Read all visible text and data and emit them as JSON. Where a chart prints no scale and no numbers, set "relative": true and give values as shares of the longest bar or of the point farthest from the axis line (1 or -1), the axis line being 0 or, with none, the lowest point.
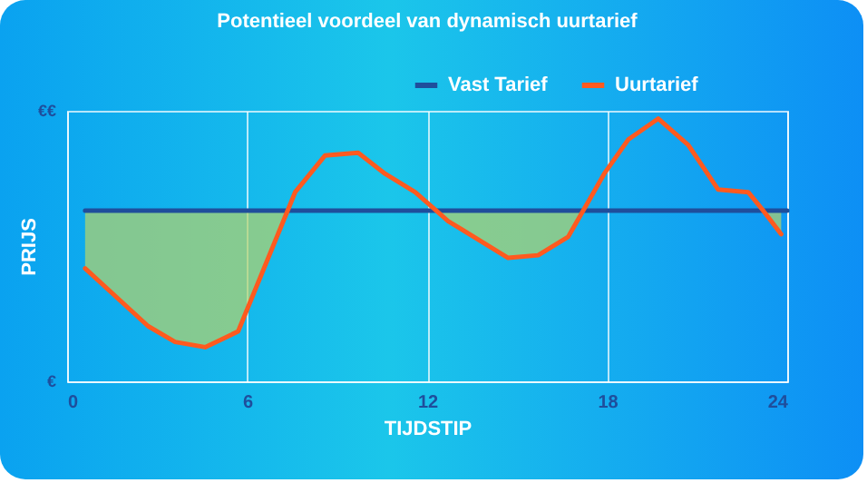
{
  "chart_data": {
    "type": "line",
    "title": "Potentieel voordeel van dynamisch uurtarief",
    "xlabel": "TIJDSTIP",
    "ylabel": "PRIJS",
    "xlim": [
      0,
      24
    ],
    "xticks": [
      0,
      6,
      12,
      18,
      24
    ],
    "relative": true,
    "annotations": [
      "€€",
      "€"
    ],
    "grid": "x",
    "legend": "top right",
    "marker": "none",
    "line_style": "solid",
    "series": [
      {
        "name": "Vast Tarief",
        "color": "#1f4e9c",
        "x": [
          0.6,
          24
        ],
        "values": [
          0.65,
          0.65
        ]
      },
      {
        "name": "Uurtarief",
        "color": "#ff5a1f",
        "x": [
          0.6,
          2.7,
          3.6,
          4.6,
          5.7,
          7.35,
          7.6,
          8.6,
          9.7,
          10.6,
          11.6,
          12.3,
          12.7,
          14.7,
          15.7,
          16.7,
          17.2,
          17.9,
          18.7,
          19.7,
          20.7,
          21.7,
          22.7,
          23.2,
          23.8
        ],
        "values": [
          0.43,
          0.21,
          0.15,
          0.13,
          0.19,
          0.65,
          0.72,
          0.86,
          0.87,
          0.79,
          0.72,
          0.65,
          0.61,
          0.47,
          0.48,
          0.55,
          0.65,
          0.79,
          0.92,
          1,
          0.9,
          0.73,
          0.72,
          0.65,
          0.56
        ],
        "lower": [
          0.43,
          0.21,
          0.15,
          0.13,
          0.19,
          0.65,
          null,
          null,
          null,
          null,
          null,
          0.65,
          0.61,
          0.47,
          0.48,
          0.55,
          0.65,
          null,
          null,
          null,
          null,
          null,
          null,
          0.65,
          0.56
        ],
        "upper": [
          0.65,
          0.65,
          0.65,
          0.65,
          0.65,
          0.65,
          null,
          null,
          null,
          null,
          null,
          0.65,
          0.65,
          0.65,
          0.65,
          0.65,
          0.65,
          null,
          null,
          null,
          null,
          null,
          null,
          0.65,
          0.65
        ]
      }
    ]
  }
}
